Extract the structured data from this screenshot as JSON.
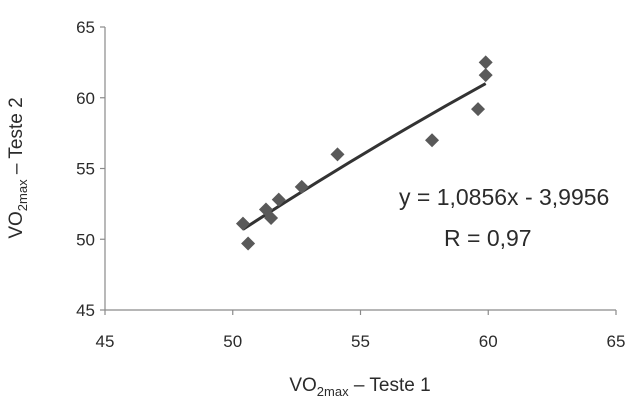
{
  "chart_data": {
    "type": "scatter",
    "xlabel": {
      "base": "VO",
      "sub": "2max",
      "rest": " – Teste 1"
    },
    "ylabel": {
      "base": "VO",
      "sub": "2max",
      "rest": " – Teste 2"
    },
    "xlim": [
      45,
      65
    ],
    "ylim": [
      45,
      65
    ],
    "x_ticks": [
      45,
      50,
      55,
      60,
      65
    ],
    "y_ticks": [
      45,
      50,
      55,
      60,
      65
    ],
    "x_tick_labels": [
      "45",
      "50",
      "55",
      "60",
      "65"
    ],
    "y_tick_labels": [
      "45",
      "50",
      "55",
      "60",
      "65"
    ],
    "grid": false,
    "marker": "diamond",
    "marker_color": "#595959",
    "line_color": "#333333",
    "points": [
      {
        "x": 50.4,
        "y": 51.1
      },
      {
        "x": 50.6,
        "y": 49.7
      },
      {
        "x": 51.3,
        "y": 52.1
      },
      {
        "x": 51.5,
        "y": 51.5
      },
      {
        "x": 51.8,
        "y": 52.8
      },
      {
        "x": 52.7,
        "y": 53.7
      },
      {
        "x": 54.1,
        "y": 56.0
      },
      {
        "x": 57.8,
        "y": 57.0
      },
      {
        "x": 59.6,
        "y": 59.2
      },
      {
        "x": 59.9,
        "y": 61.6
      },
      {
        "x": 59.9,
        "y": 62.5
      }
    ],
    "trendline": {
      "x": [
        50.4,
        59.9
      ],
      "y": [
        50.7,
        61.0
      ]
    },
    "annotations": {
      "equation": "y = 1,0856x - 3,9956",
      "r": "R  = 0,97"
    }
  }
}
